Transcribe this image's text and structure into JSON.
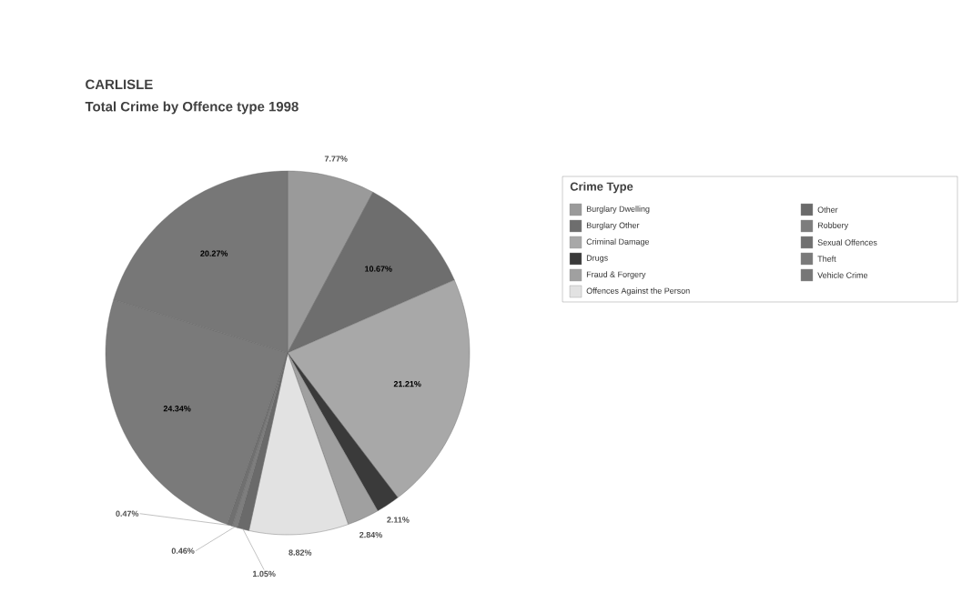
{
  "chart_data": {
    "type": "pie",
    "title": "CARLISLE",
    "subtitle": "Total Crime by Offence type 1998",
    "legend_title": "Crime Type",
    "legend": "right",
    "categories": [
      "Burglary Dwelling",
      "Burglary Other",
      "Criminal Damage",
      "Drugs",
      "Fraud & Forgery",
      "Offences Against the Person",
      "Other",
      "Robbery",
      "Sexual Offences",
      "Theft",
      "Vehicle Crime"
    ],
    "values": [
      7.77,
      10.67,
      21.21,
      2.11,
      2.84,
      8.82,
      1.05,
      0.46,
      0.47,
      24.34,
      20.27
    ],
    "value_labels": [
      "7.77%",
      "10.67%",
      "21.21%",
      "2.11%",
      "2.84%",
      "8.82%",
      "1.05%",
      "0.46%",
      "0.47%",
      "24.34%",
      "20.27%"
    ],
    "colors": [
      "#9a9a9a",
      "#6e6e6e",
      "#a8a8a8",
      "#3a3a3a",
      "#a0a0a0",
      "#e2e2e2",
      "#6a6a6a",
      "#7d7d7d",
      "#707070",
      "#7a7a7a",
      "#777777"
    ]
  }
}
